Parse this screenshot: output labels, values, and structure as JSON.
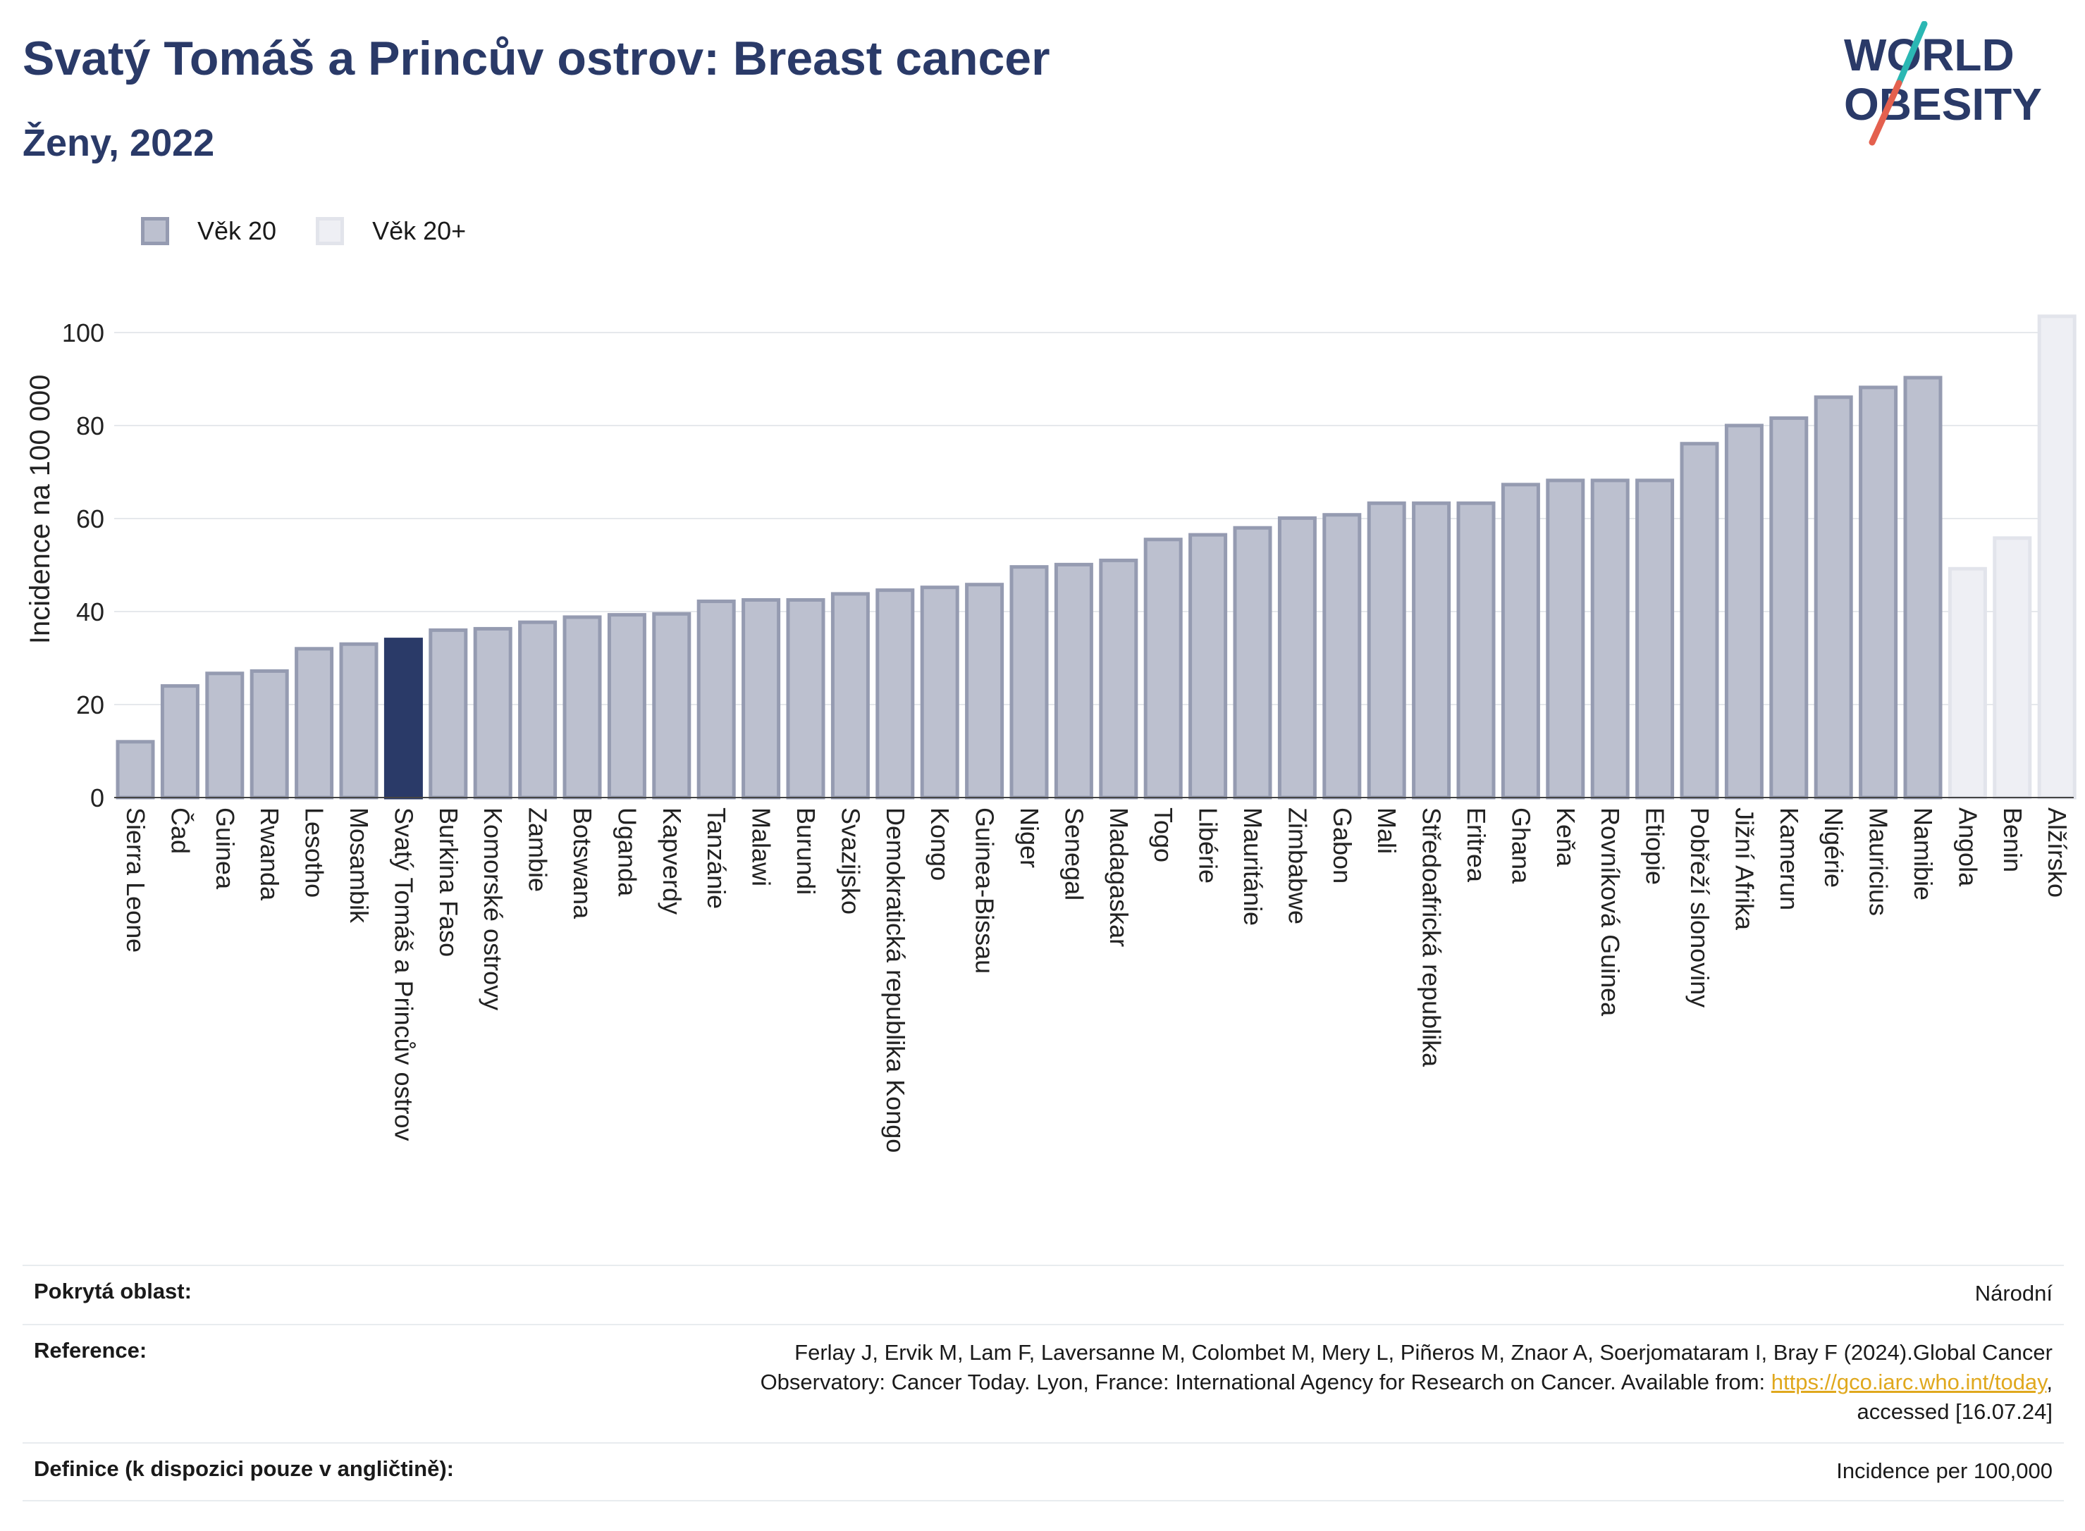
{
  "header": {
    "title": "Svatý Tomáš a Princův ostrov: Breast cancer",
    "subtitle": "Ženy, 2022"
  },
  "logo": {
    "line1": "WORLD",
    "line2": "OBESITY",
    "colors": {
      "text": "#2a3a68",
      "slash_top": "#2bb7b3",
      "slash_bottom": "#e4604e"
    }
  },
  "legend": {
    "items": [
      {
        "label": "Věk 20",
        "color": "#bcc0cf"
      },
      {
        "label": "Věk 20+",
        "color": "#eeeff4"
      }
    ]
  },
  "chart_data": {
    "type": "bar",
    "ylabel": "Incidence na 100 000",
    "xlabel": "",
    "ylim": [
      0,
      110
    ],
    "yticks": [
      0,
      20,
      40,
      60,
      80,
      100
    ],
    "grid": true,
    "legend_position": "top-left",
    "categories": [
      "Sierra Leone",
      "Čad",
      "Guinea",
      "Rwanda",
      "Lesotho",
      "Mosambik",
      "Svatý Tomáš a Princův ostrov",
      "Burkina Faso",
      "Komorské ostrovy",
      "Zambie",
      "Botswana",
      "Uganda",
      "Kapverdy",
      "Tanzánie",
      "Malawi",
      "Burundi",
      "Svazijsko",
      "Demokratická republika Kongo",
      "Kongo",
      "Guinea-Bissau",
      "Niger",
      "Senegal",
      "Madagaskar",
      "Togo",
      "Libérie",
      "Mauritánie",
      "Zimbabwe",
      "Gabon",
      "Mali",
      "Středoafrická republika",
      "Eritrea",
      "Ghana",
      "Keňa",
      "Rovníková Guinea",
      "Etiopie",
      "Pobřeží slonoviny",
      "Jižní Afrika",
      "Kamerun",
      "Nigérie",
      "Mauricius",
      "Namibie",
      "Angola",
      "Benin",
      "Alžírsko"
    ],
    "values": [
      12,
      24,
      26.7,
      27.2,
      32,
      33,
      34,
      36,
      36.3,
      37.7,
      38.8,
      39.3,
      39.5,
      42.2,
      42.5,
      42.5,
      43.8,
      44.6,
      45.2,
      45.8,
      49.6,
      50.1,
      51,
      55.5,
      56.5,
      58,
      60.1,
      60.8,
      63.3,
      63.3,
      63.3,
      67.3,
      68.2,
      68.2,
      68.2,
      76.1,
      80,
      81.6,
      86.1,
      88.2,
      90.3,
      49.2,
      55.8,
      103.5
    ],
    "groups": [
      "Věk 20",
      "Věk 20",
      "Věk 20",
      "Věk 20",
      "Věk 20",
      "Věk 20",
      "Věk 20",
      "Věk 20",
      "Věk 20",
      "Věk 20",
      "Věk 20",
      "Věk 20",
      "Věk 20",
      "Věk 20",
      "Věk 20",
      "Věk 20",
      "Věk 20",
      "Věk 20",
      "Věk 20",
      "Věk 20",
      "Věk 20",
      "Věk 20",
      "Věk 20",
      "Věk 20",
      "Věk 20",
      "Věk 20",
      "Věk 20",
      "Věk 20",
      "Věk 20",
      "Věk 20",
      "Věk 20",
      "Věk 20",
      "Věk 20",
      "Věk 20",
      "Věk 20",
      "Věk 20",
      "Věk 20",
      "Věk 20",
      "Věk 20",
      "Věk 20",
      "Věk 20",
      "Věk 20+",
      "Věk 20+",
      "Věk 20+"
    ],
    "highlight": "Svatý Tomáš a Princův ostrov",
    "colors": {
      "bar": "#bcc0cf",
      "bar_border": "#959bb1",
      "bar_plus": "#eeeff4",
      "bar_plus_border": "#e2e4eb",
      "highlight": "#2a3a68",
      "grid": "#e6e8ec",
      "axis": "#444444"
    }
  },
  "metadata": {
    "coverage_label": "Pokrytá oblast:",
    "coverage_value": "Národní",
    "reference_label": "Reference:",
    "reference_line1": "Ferlay J, Ervik M, Lam F, Laversanne M, Colombet M, Mery L, Piñeros M, Znaor A, Soerjomataram I, Bray F (2024).Global Cancer",
    "reference_line2_prefix": "Observatory: Cancer Today. Lyon, France: International Agency for Research on Cancer. Available from: ",
    "reference_link": "https://gco.iarc.who.int/today",
    "reference_line2_suffix": ",",
    "reference_line3": "accessed [16.07.24]",
    "definition_label": "Definice (k dispozici pouze v angličtině):",
    "definition_value": "Incidence per 100,000"
  }
}
